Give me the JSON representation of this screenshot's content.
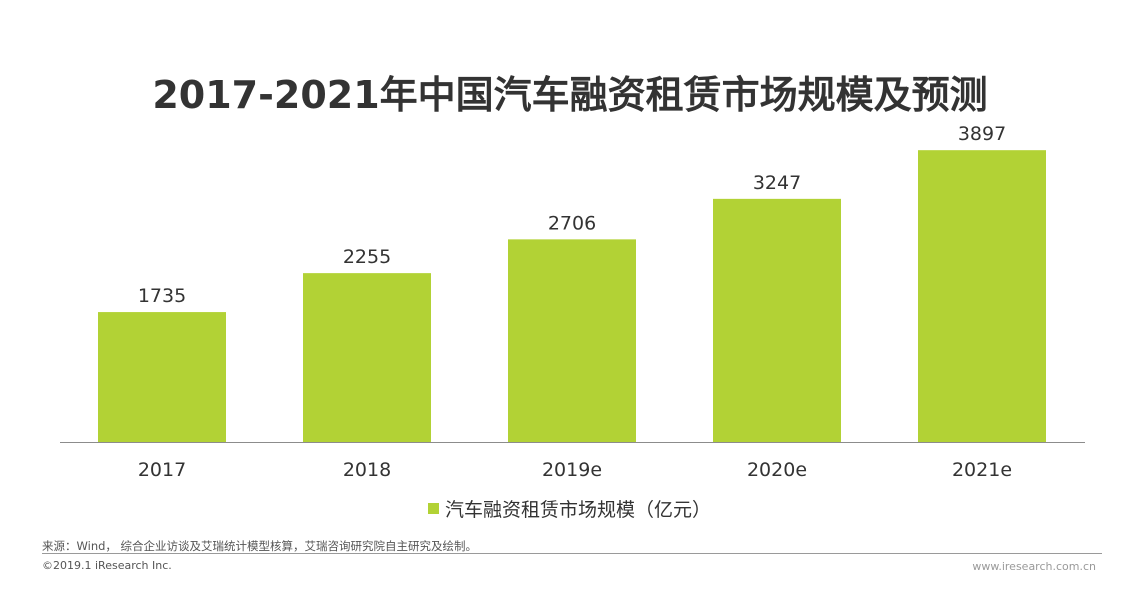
{
  "chart_data": {
    "type": "bar",
    "title": "2017-2021年中国汽车融资租赁市场规模及预测",
    "categories": [
      "2017",
      "2018",
      "2019e",
      "2020e",
      "2021e"
    ],
    "series": [
      {
        "name": "汽车融资租赁市场规模（亿元）",
        "values": [
          1735,
          2255,
          2706,
          3247,
          3897
        ]
      }
    ],
    "value_labels": [
      "1735",
      "2255",
      "2706",
      "3247",
      "3897"
    ],
    "ylim": [
      0,
      4300
    ],
    "xlabel": "",
    "ylabel": "",
    "grid": false,
    "legend_position": "bottom",
    "bar_color": "#b2d235",
    "axis_color": "#8c8c8c"
  },
  "footer": {
    "source": "来源：Wind， 综合企业访谈及艾瑞统计模型核算，艾瑞咨询研究院自主研究及绘制。",
    "copyright": "©2019.1 iResearch Inc.",
    "website": "www.iresearch.com.cn"
  }
}
